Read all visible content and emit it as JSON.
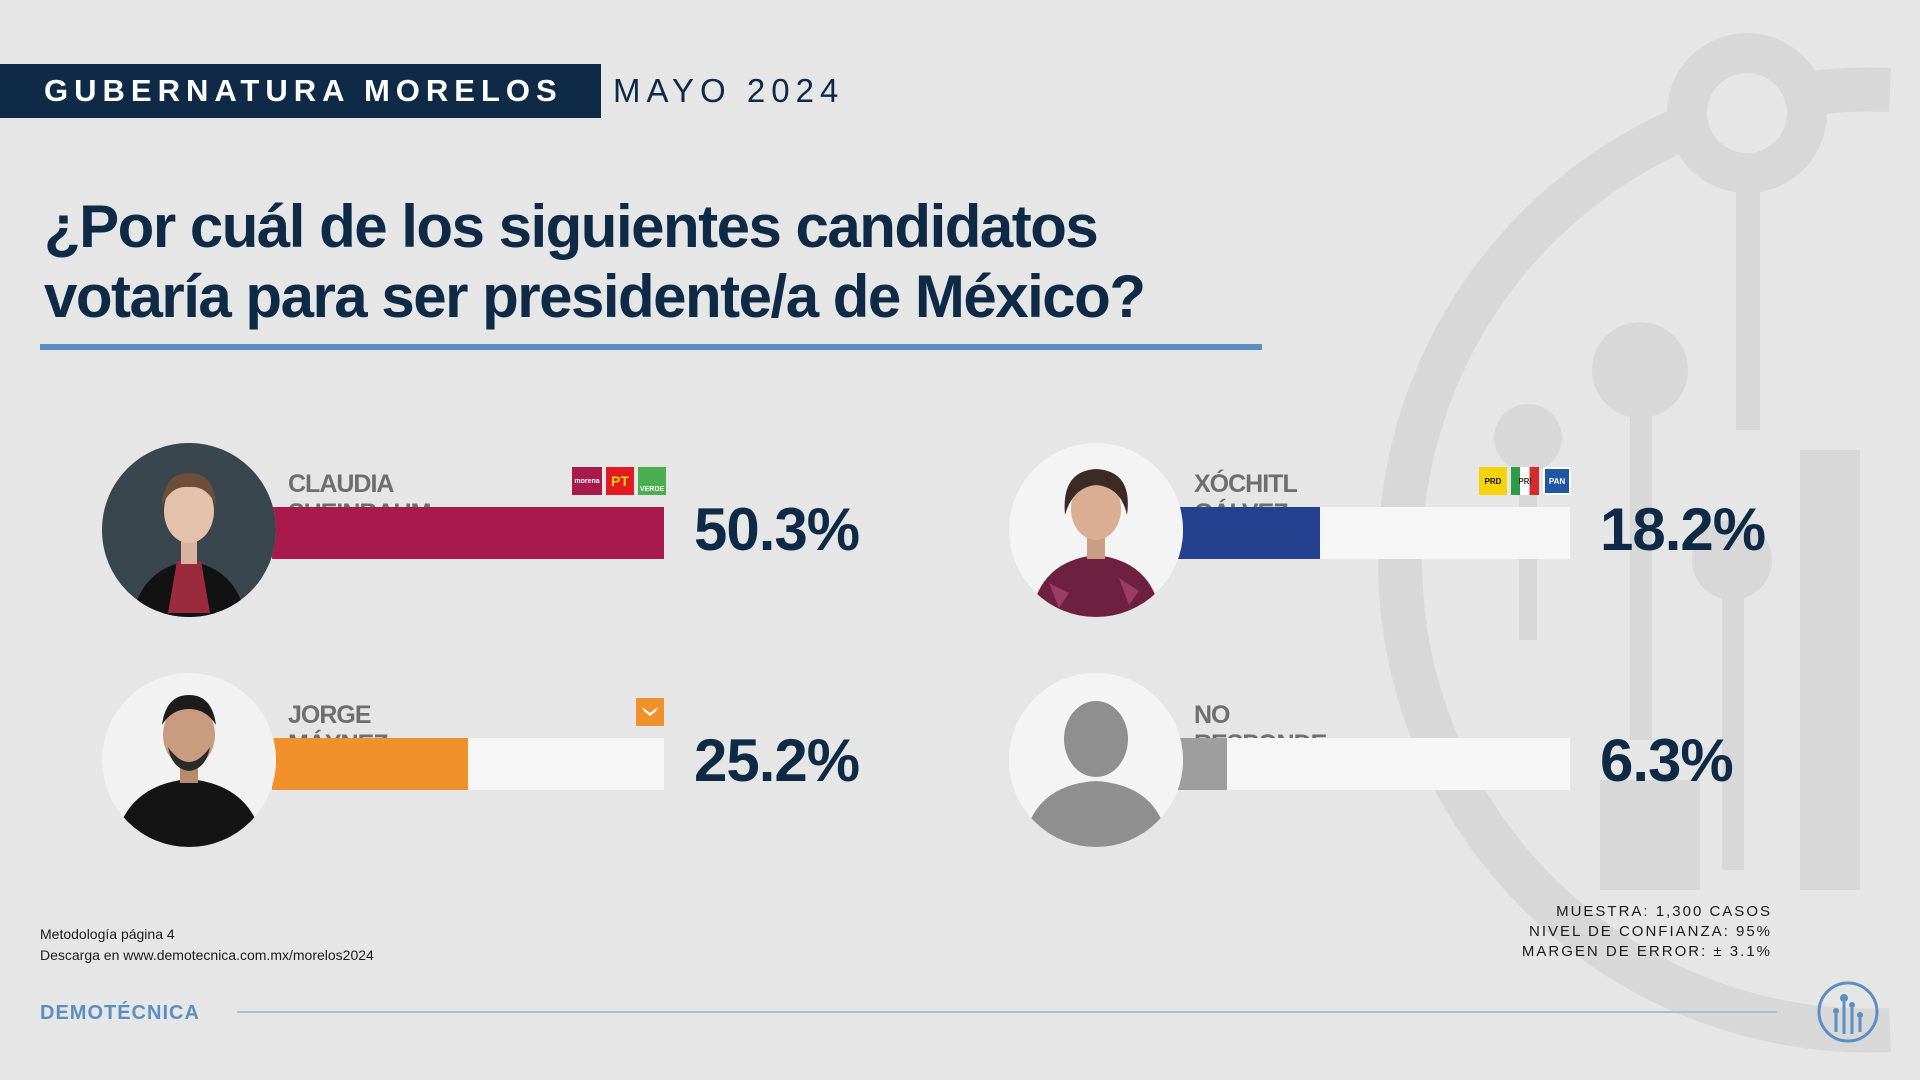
{
  "header": {
    "title": "GUBERNATURA MORELOS",
    "date": "MAYO 2024"
  },
  "question": {
    "line1": "¿Por cuál de los siguientes candidatos",
    "line2": "votaría para ser presidente/a de México?"
  },
  "colors": {
    "navy": "#0e2a47",
    "accent_blue": "#5a8fc2",
    "sheinbaum": "#a8194c",
    "galvez": "#24408e",
    "maynez": "#f0912c",
    "no_responde": "#9e9e9e",
    "track": "#f6f6f6"
  },
  "chart_data": {
    "type": "bar",
    "categories": [
      "CLAUDIA SHEINBAUM",
      "XÓCHITL GÁLVEZ",
      "JORGE MÁYNEZ",
      "NO RESPONDE"
    ],
    "values": [
      50.3,
      18.2,
      25.2,
      6.3
    ],
    "labels": [
      "50.3%",
      "18.2%",
      "25.2%",
      "6.3%"
    ],
    "unit": "%",
    "ylim": [
      0,
      100
    ]
  },
  "candidates": [
    {
      "name": "CLAUDIA SHEINBAUM",
      "value": 50.3,
      "label": "50.3%",
      "color": "#a8194c",
      "parties": [
        {
          "text": "morena",
          "icon": "morena-logo-icon",
          "bg": "#a8194c"
        },
        {
          "text": "PT",
          "icon": "pt-logo-icon",
          "bg": "#e21b23"
        },
        {
          "text": "VERDE",
          "icon": "verde-logo-icon",
          "bg": "#4bae4f"
        }
      ]
    },
    {
      "name": "XÓCHITL GÁLVEZ",
      "value": 18.2,
      "label": "18.2%",
      "color": "#24408e",
      "parties": [
        {
          "text": "PRD",
          "icon": "prd-logo-icon",
          "bg": "#f7d30c"
        },
        {
          "text": "PRI",
          "icon": "pri-logo-icon",
          "bg": "#ffffff"
        },
        {
          "text": "PAN",
          "icon": "pan-logo-icon",
          "bg": "#1f57a5"
        }
      ]
    },
    {
      "name": "JORGE MÁYNEZ",
      "value": 25.2,
      "label": "25.2%",
      "color": "#f0912c",
      "parties": [
        {
          "text": "MC",
          "icon": "movimiento-ciudadano-logo-icon",
          "bg": "#f0912c"
        }
      ]
    },
    {
      "name": "NO RESPONDE",
      "value": 6.3,
      "label": "6.3%",
      "color": "#9e9e9e",
      "parties": []
    }
  ],
  "footer": {
    "method_line1": "Metodología página 4",
    "method_line2": "Descarga en www.demotecnica.com.mx/morelos2024",
    "muestra": "MUESTRA: 1,300 CASOS",
    "confianza": "NIVEL DE CONFIANZA: 95%",
    "margen": "MARGEN DE ERROR: ± 3.1%",
    "brand": "DEMOTÉCNICA"
  }
}
